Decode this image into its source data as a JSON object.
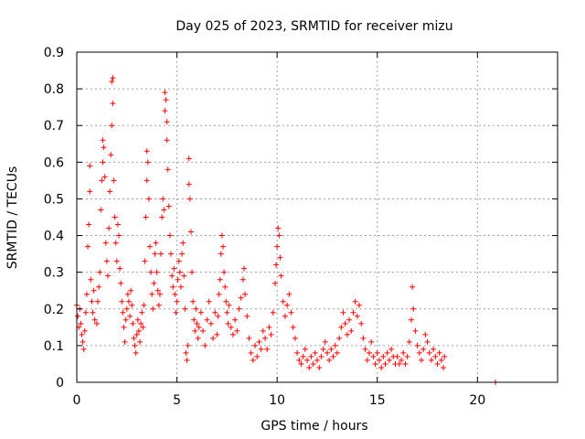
{
  "chart_data": {
    "type": "scatter",
    "title": "Day 025 of 2023, SRMTID for receiver mizu",
    "xlabel": "GPS time / hours",
    "ylabel": "SRMTID / TECUs",
    "xlim": [
      0,
      24
    ],
    "ylim": [
      0,
      0.9
    ],
    "x_ticks": [
      0,
      5,
      10,
      15,
      20
    ],
    "x_tick_labels": [
      "0",
      "5",
      "10",
      "15",
      "20"
    ],
    "y_ticks": [
      0,
      0.1,
      0.2,
      0.3,
      0.4,
      0.5,
      0.6,
      0.7,
      0.8,
      0.9
    ],
    "y_tick_labels": [
      "0",
      "0.1",
      "0.2",
      "0.3",
      "0.4",
      "0.5",
      "0.6",
      "0.7",
      "0.8",
      "0.9"
    ],
    "grid": true,
    "marker": "+",
    "color": "#ff0000",
    "series": [
      {
        "name": "SRMTID",
        "points": [
          [
            0.0,
            0.21
          ],
          [
            0.05,
            0.18
          ],
          [
            0.1,
            0.15
          ],
          [
            0.15,
            0.2
          ],
          [
            0.2,
            0.16
          ],
          [
            0.25,
            0.13
          ],
          [
            0.3,
            0.11
          ],
          [
            0.35,
            0.09
          ],
          [
            0.4,
            0.14
          ],
          [
            0.45,
            0.19
          ],
          [
            0.5,
            0.24
          ],
          [
            0.55,
            0.37
          ],
          [
            0.6,
            0.43
          ],
          [
            0.65,
            0.52
          ],
          [
            0.65,
            0.59
          ],
          [
            0.7,
            0.28
          ],
          [
            0.75,
            0.22
          ],
          [
            0.8,
            0.19
          ],
          [
            0.85,
            0.25
          ],
          [
            0.9,
            0.17
          ],
          [
            1.0,
            0.16
          ],
          [
            1.05,
            0.22
          ],
          [
            1.1,
            0.26
          ],
          [
            1.15,
            0.3
          ],
          [
            1.2,
            0.47
          ],
          [
            1.25,
            0.55
          ],
          [
            1.3,
            0.6
          ],
          [
            1.3,
            0.66
          ],
          [
            1.35,
            0.64
          ],
          [
            1.4,
            0.56
          ],
          [
            1.45,
            0.38
          ],
          [
            1.5,
            0.33
          ],
          [
            1.55,
            0.29
          ],
          [
            1.6,
            0.42
          ],
          [
            1.65,
            0.52
          ],
          [
            1.7,
            0.62
          ],
          [
            1.75,
            0.7
          ],
          [
            1.75,
            0.82
          ],
          [
            1.8,
            0.83
          ],
          [
            1.8,
            0.76
          ],
          [
            1.85,
            0.55
          ],
          [
            1.9,
            0.45
          ],
          [
            1.95,
            0.38
          ],
          [
            2.0,
            0.33
          ],
          [
            2.05,
            0.43
          ],
          [
            2.1,
            0.4
          ],
          [
            2.15,
            0.31
          ],
          [
            2.2,
            0.27
          ],
          [
            2.25,
            0.22
          ],
          [
            2.3,
            0.19
          ],
          [
            2.35,
            0.15
          ],
          [
            2.4,
            0.11
          ],
          [
            2.45,
            0.17
          ],
          [
            2.5,
            0.2
          ],
          [
            2.55,
            0.24
          ],
          [
            2.6,
            0.22
          ],
          [
            2.65,
            0.18
          ],
          [
            2.7,
            0.25
          ],
          [
            2.75,
            0.21
          ],
          [
            2.8,
            0.16
          ],
          [
            2.85,
            0.12
          ],
          [
            2.9,
            0.1
          ],
          [
            2.95,
            0.08
          ],
          [
            3.0,
            0.13
          ],
          [
            3.05,
            0.17
          ],
          [
            3.1,
            0.14
          ],
          [
            3.15,
            0.11
          ],
          [
            3.2,
            0.16
          ],
          [
            3.25,
            0.19
          ],
          [
            3.3,
            0.15
          ],
          [
            3.35,
            0.21
          ],
          [
            3.4,
            0.33
          ],
          [
            3.45,
            0.45
          ],
          [
            3.5,
            0.55
          ],
          [
            3.5,
            0.63
          ],
          [
            3.55,
            0.6
          ],
          [
            3.6,
            0.5
          ],
          [
            3.65,
            0.37
          ],
          [
            3.7,
            0.3
          ],
          [
            3.75,
            0.24
          ],
          [
            3.8,
            0.2
          ],
          [
            3.85,
            0.27
          ],
          [
            3.9,
            0.35
          ],
          [
            3.95,
            0.38
          ],
          [
            4.0,
            0.3
          ],
          [
            4.05,
            0.25
          ],
          [
            4.1,
            0.21
          ],
          [
            4.15,
            0.24
          ],
          [
            4.2,
            0.35
          ],
          [
            4.25,
            0.45
          ],
          [
            4.3,
            0.5
          ],
          [
            4.35,
            0.47
          ],
          [
            4.4,
            0.74
          ],
          [
            4.4,
            0.79
          ],
          [
            4.45,
            0.77
          ],
          [
            4.5,
            0.71
          ],
          [
            4.5,
            0.66
          ],
          [
            4.55,
            0.58
          ],
          [
            4.6,
            0.48
          ],
          [
            4.65,
            0.4
          ],
          [
            4.7,
            0.35
          ],
          [
            4.75,
            0.29
          ],
          [
            4.8,
            0.26
          ],
          [
            4.85,
            0.31
          ],
          [
            4.9,
            0.24
          ],
          [
            4.95,
            0.19
          ],
          [
            5.0,
            0.22
          ],
          [
            5.05,
            0.28
          ],
          [
            5.1,
            0.33
          ],
          [
            5.15,
            0.3
          ],
          [
            5.2,
            0.26
          ],
          [
            5.25,
            0.35
          ],
          [
            5.3,
            0.38
          ],
          [
            5.35,
            0.29
          ],
          [
            5.4,
            0.2
          ],
          [
            5.45,
            0.08
          ],
          [
            5.5,
            0.06
          ],
          [
            5.55,
            0.1
          ],
          [
            5.6,
            0.54
          ],
          [
            5.6,
            0.61
          ],
          [
            5.65,
            0.5
          ],
          [
            5.7,
            0.41
          ],
          [
            5.75,
            0.3
          ],
          [
            5.8,
            0.22
          ],
          [
            5.85,
            0.17
          ],
          [
            5.9,
            0.14
          ],
          [
            5.95,
            0.2
          ],
          [
            6.0,
            0.16
          ],
          [
            6.05,
            0.12
          ],
          [
            6.1,
            0.15
          ],
          [
            6.2,
            0.19
          ],
          [
            6.3,
            0.14
          ],
          [
            6.4,
            0.1
          ],
          [
            6.5,
            0.17
          ],
          [
            6.6,
            0.22
          ],
          [
            6.7,
            0.16
          ],
          [
            6.8,
            0.12
          ],
          [
            6.9,
            0.19
          ],
          [
            7.0,
            0.13
          ],
          [
            7.05,
            0.18
          ],
          [
            7.1,
            0.24
          ],
          [
            7.15,
            0.28
          ],
          [
            7.2,
            0.35
          ],
          [
            7.25,
            0.4
          ],
          [
            7.3,
            0.37
          ],
          [
            7.35,
            0.3
          ],
          [
            7.4,
            0.26
          ],
          [
            7.45,
            0.22
          ],
          [
            7.5,
            0.19
          ],
          [
            7.55,
            0.16
          ],
          [
            7.6,
            0.21
          ],
          [
            7.7,
            0.15
          ],
          [
            7.8,
            0.13
          ],
          [
            7.9,
            0.17
          ],
          [
            8.0,
            0.14
          ],
          [
            8.1,
            0.2
          ],
          [
            8.2,
            0.23
          ],
          [
            8.3,
            0.28
          ],
          [
            8.35,
            0.31
          ],
          [
            8.4,
            0.24
          ],
          [
            8.5,
            0.18
          ],
          [
            8.6,
            0.12
          ],
          [
            8.7,
            0.08
          ],
          [
            8.8,
            0.06
          ],
          [
            8.9,
            0.1
          ],
          [
            9.0,
            0.07
          ],
          [
            9.1,
            0.11
          ],
          [
            9.2,
            0.09
          ],
          [
            9.3,
            0.14
          ],
          [
            9.4,
            0.12
          ],
          [
            9.5,
            0.09
          ],
          [
            9.6,
            0.15
          ],
          [
            9.7,
            0.13
          ],
          [
            9.8,
            0.19
          ],
          [
            9.9,
            0.27
          ],
          [
            9.95,
            0.32
          ],
          [
            10.0,
            0.37
          ],
          [
            10.05,
            0.42
          ],
          [
            10.1,
            0.4
          ],
          [
            10.15,
            0.34
          ],
          [
            10.2,
            0.29
          ],
          [
            10.3,
            0.22
          ],
          [
            10.4,
            0.18
          ],
          [
            10.5,
            0.21
          ],
          [
            10.6,
            0.24
          ],
          [
            10.7,
            0.19
          ],
          [
            10.8,
            0.15
          ],
          [
            10.9,
            0.12
          ],
          [
            11.0,
            0.08
          ],
          [
            11.1,
            0.06
          ],
          [
            11.2,
            0.05
          ],
          [
            11.3,
            0.07
          ],
          [
            11.4,
            0.09
          ],
          [
            11.5,
            0.06
          ],
          [
            11.6,
            0.04
          ],
          [
            11.7,
            0.07
          ],
          [
            11.8,
            0.05
          ],
          [
            11.9,
            0.08
          ],
          [
            12.0,
            0.06
          ],
          [
            12.1,
            0.04
          ],
          [
            12.2,
            0.07
          ],
          [
            12.3,
            0.09
          ],
          [
            12.4,
            0.11
          ],
          [
            12.5,
            0.08
          ],
          [
            12.6,
            0.06
          ],
          [
            12.7,
            0.09
          ],
          [
            12.8,
            0.07
          ],
          [
            12.9,
            0.1
          ],
          [
            13.0,
            0.08
          ],
          [
            13.1,
            0.12
          ],
          [
            13.2,
            0.15
          ],
          [
            13.3,
            0.19
          ],
          [
            13.4,
            0.16
          ],
          [
            13.5,
            0.13
          ],
          [
            13.6,
            0.17
          ],
          [
            13.7,
            0.14
          ],
          [
            13.8,
            0.19
          ],
          [
            13.9,
            0.22
          ],
          [
            14.0,
            0.18
          ],
          [
            14.1,
            0.21
          ],
          [
            14.2,
            0.16
          ],
          [
            14.3,
            0.12
          ],
          [
            14.4,
            0.09
          ],
          [
            14.5,
            0.06
          ],
          [
            14.6,
            0.08
          ],
          [
            14.7,
            0.11
          ],
          [
            14.8,
            0.07
          ],
          [
            14.9,
            0.05
          ],
          [
            15.0,
            0.08
          ],
          [
            15.1,
            0.06
          ],
          [
            15.2,
            0.04
          ],
          [
            15.3,
            0.07
          ],
          [
            15.4,
            0.05
          ],
          [
            15.5,
            0.08
          ],
          [
            15.6,
            0.06
          ],
          [
            15.7,
            0.09
          ],
          [
            15.8,
            0.07
          ],
          [
            15.9,
            0.05
          ],
          [
            16.0,
            0.07
          ],
          [
            16.1,
            0.05
          ],
          [
            16.2,
            0.06
          ],
          [
            16.3,
            0.08
          ],
          [
            16.4,
            0.05
          ],
          [
            16.5,
            0.07
          ],
          [
            16.6,
            0.11
          ],
          [
            16.7,
            0.17
          ],
          [
            16.75,
            0.26
          ],
          [
            16.8,
            0.2
          ],
          [
            16.9,
            0.14
          ],
          [
            17.0,
            0.1
          ],
          [
            17.1,
            0.08
          ],
          [
            17.2,
            0.06
          ],
          [
            17.3,
            0.09
          ],
          [
            17.4,
            0.13
          ],
          [
            17.5,
            0.11
          ],
          [
            17.6,
            0.08
          ],
          [
            17.7,
            0.06
          ],
          [
            17.8,
            0.09
          ],
          [
            17.9,
            0.07
          ],
          [
            18.0,
            0.05
          ],
          [
            18.1,
            0.08
          ],
          [
            18.2,
            0.06
          ],
          [
            18.3,
            0.04
          ],
          [
            18.35,
            0.07
          ],
          [
            20.9,
            0.0
          ]
        ]
      }
    ]
  }
}
